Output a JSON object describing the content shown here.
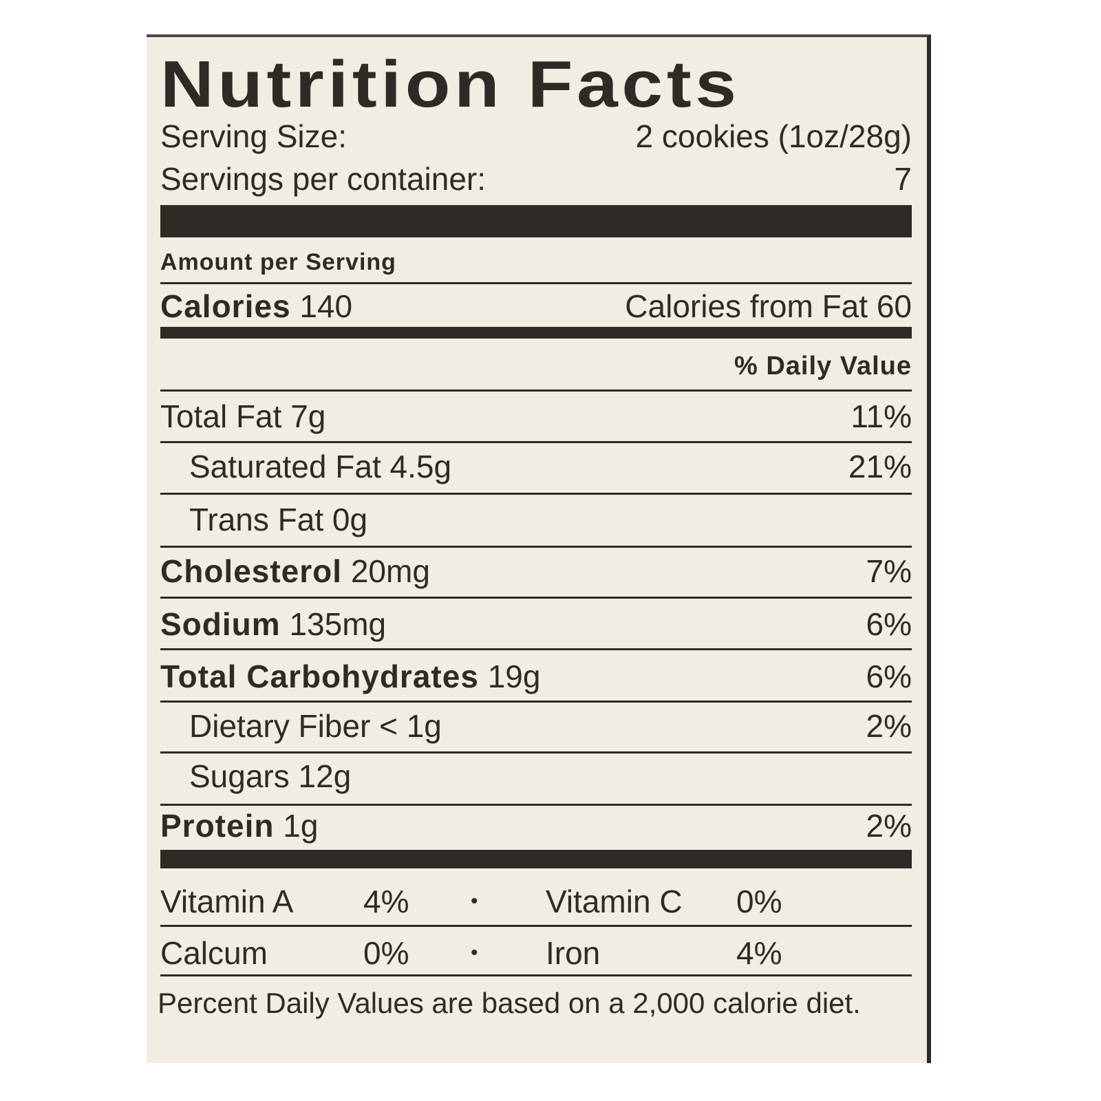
{
  "title": "Nutrition Facts",
  "serving_size": {
    "label": "Serving Size:",
    "value": "2 cookies (1oz/28g)"
  },
  "servings_per_container": {
    "label": "Servings per container:",
    "value": "7"
  },
  "amount_per_serving": "Amount per Serving",
  "calories": {
    "label": "Calories",
    "value": "140",
    "from_fat": "Calories from Fat 60"
  },
  "daily_value_header": "% Daily Value",
  "nutrients": [
    {
      "name": "Total Fat",
      "amount": "7g",
      "dv": "11%",
      "bold": false,
      "indent": false
    },
    {
      "name": "Saturated Fat",
      "amount": "4.5g",
      "dv": "21%",
      "bold": false,
      "indent": true
    },
    {
      "name": "Trans Fat",
      "amount": "0g",
      "dv": "",
      "bold": false,
      "indent": true
    },
    {
      "name": "Cholesterol",
      "amount": "20mg",
      "dv": "7%",
      "bold": true,
      "indent": false
    },
    {
      "name": "Sodium",
      "amount": "135mg",
      "dv": "6%",
      "bold": true,
      "indent": false
    },
    {
      "name": "Total Carbohydrates",
      "amount": "19g",
      "dv": "6%",
      "bold": true,
      "indent": false
    },
    {
      "name": "Dietary Fiber",
      "amount": "< 1g",
      "dv": "2%",
      "bold": false,
      "indent": true
    },
    {
      "name": "Sugars",
      "amount": "12g",
      "dv": "",
      "bold": false,
      "indent": true
    },
    {
      "name": "Protein",
      "amount": "1g",
      "dv": "2%",
      "bold": true,
      "indent": false
    }
  ],
  "vitamins": [
    [
      {
        "name": "Vitamin A",
        "dv": "4%"
      },
      {
        "name": "Vitamin C",
        "dv": "0%"
      }
    ],
    [
      {
        "name": "Calcum",
        "dv": "0%"
      },
      {
        "name": "Iron",
        "dv": "4%"
      }
    ]
  ],
  "bullet": "•",
  "footnote": "Percent Daily Values are based on a 2,000 calorie diet.",
  "colors": {
    "background": "#f1ede2",
    "ink": "#2f2a25"
  }
}
